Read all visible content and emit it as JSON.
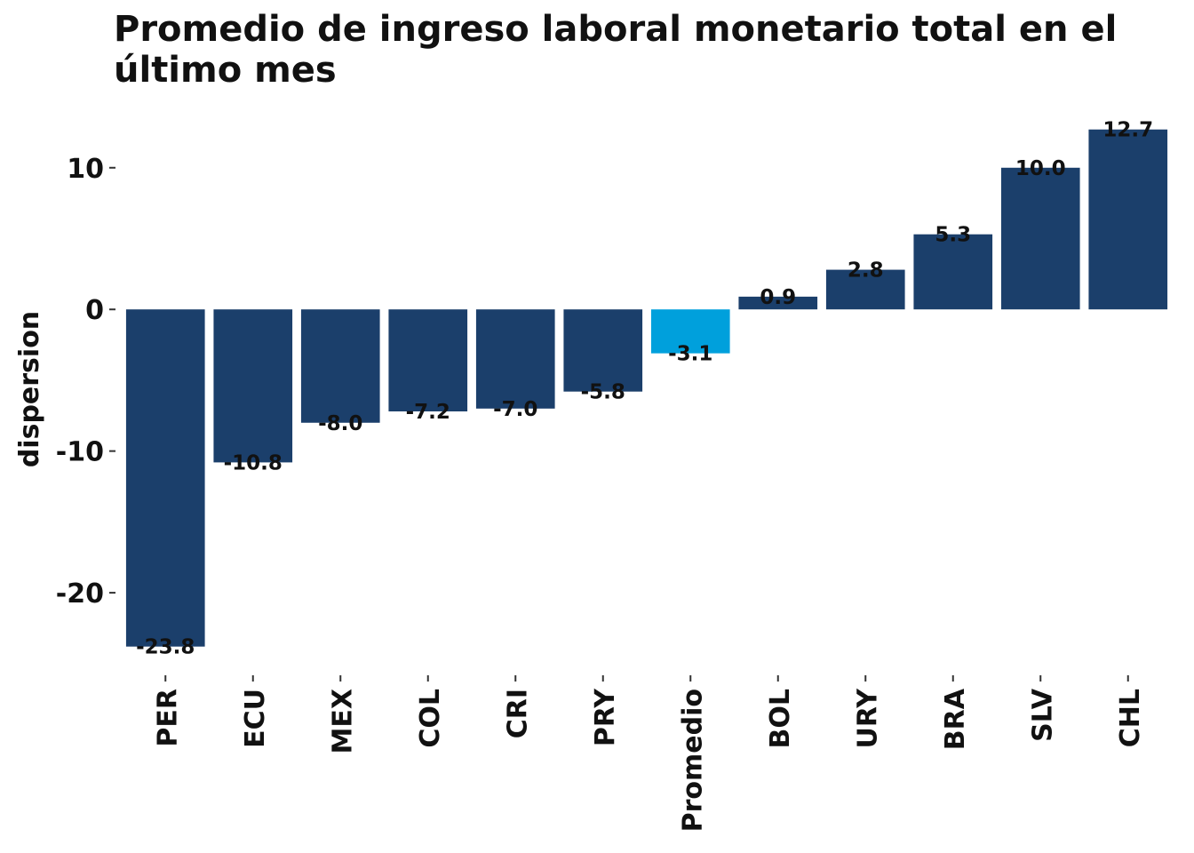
{
  "chart_data": {
    "type": "bar",
    "title": "Promedio de ingreso laboral monetario total en el último mes",
    "xlabel": "",
    "ylabel": "dispersion",
    "categories": [
      "PER",
      "ECU",
      "MEX",
      "COL",
      "CRI",
      "PRY",
      "Promedio",
      "BOL",
      "URY",
      "BRA",
      "SLV",
      "CHL"
    ],
    "values": [
      -23.8,
      -10.8,
      -8.0,
      -7.2,
      -7.0,
      -5.8,
      -3.1,
      0.9,
      2.8,
      5.3,
      10.0,
      12.7
    ],
    "value_labels": [
      "-23.8",
      "-10.8",
      "-8.0",
      "-7.2",
      "-7.0",
      "-5.8",
      "-3.1",
      "0.9",
      "2.8",
      "5.3",
      "10.0",
      "12.7"
    ],
    "yticks": [
      -20,
      -10,
      0,
      10
    ],
    "ytick_labels": [
      "-20",
      "-10",
      "0",
      "10"
    ],
    "ylim": [
      -25.2,
      14
    ],
    "grid": false,
    "legend": "none",
    "colors": {
      "default": "#1b3f6b",
      "highlight": "#00a0dc",
      "highlight_category": "Promedio"
    }
  }
}
